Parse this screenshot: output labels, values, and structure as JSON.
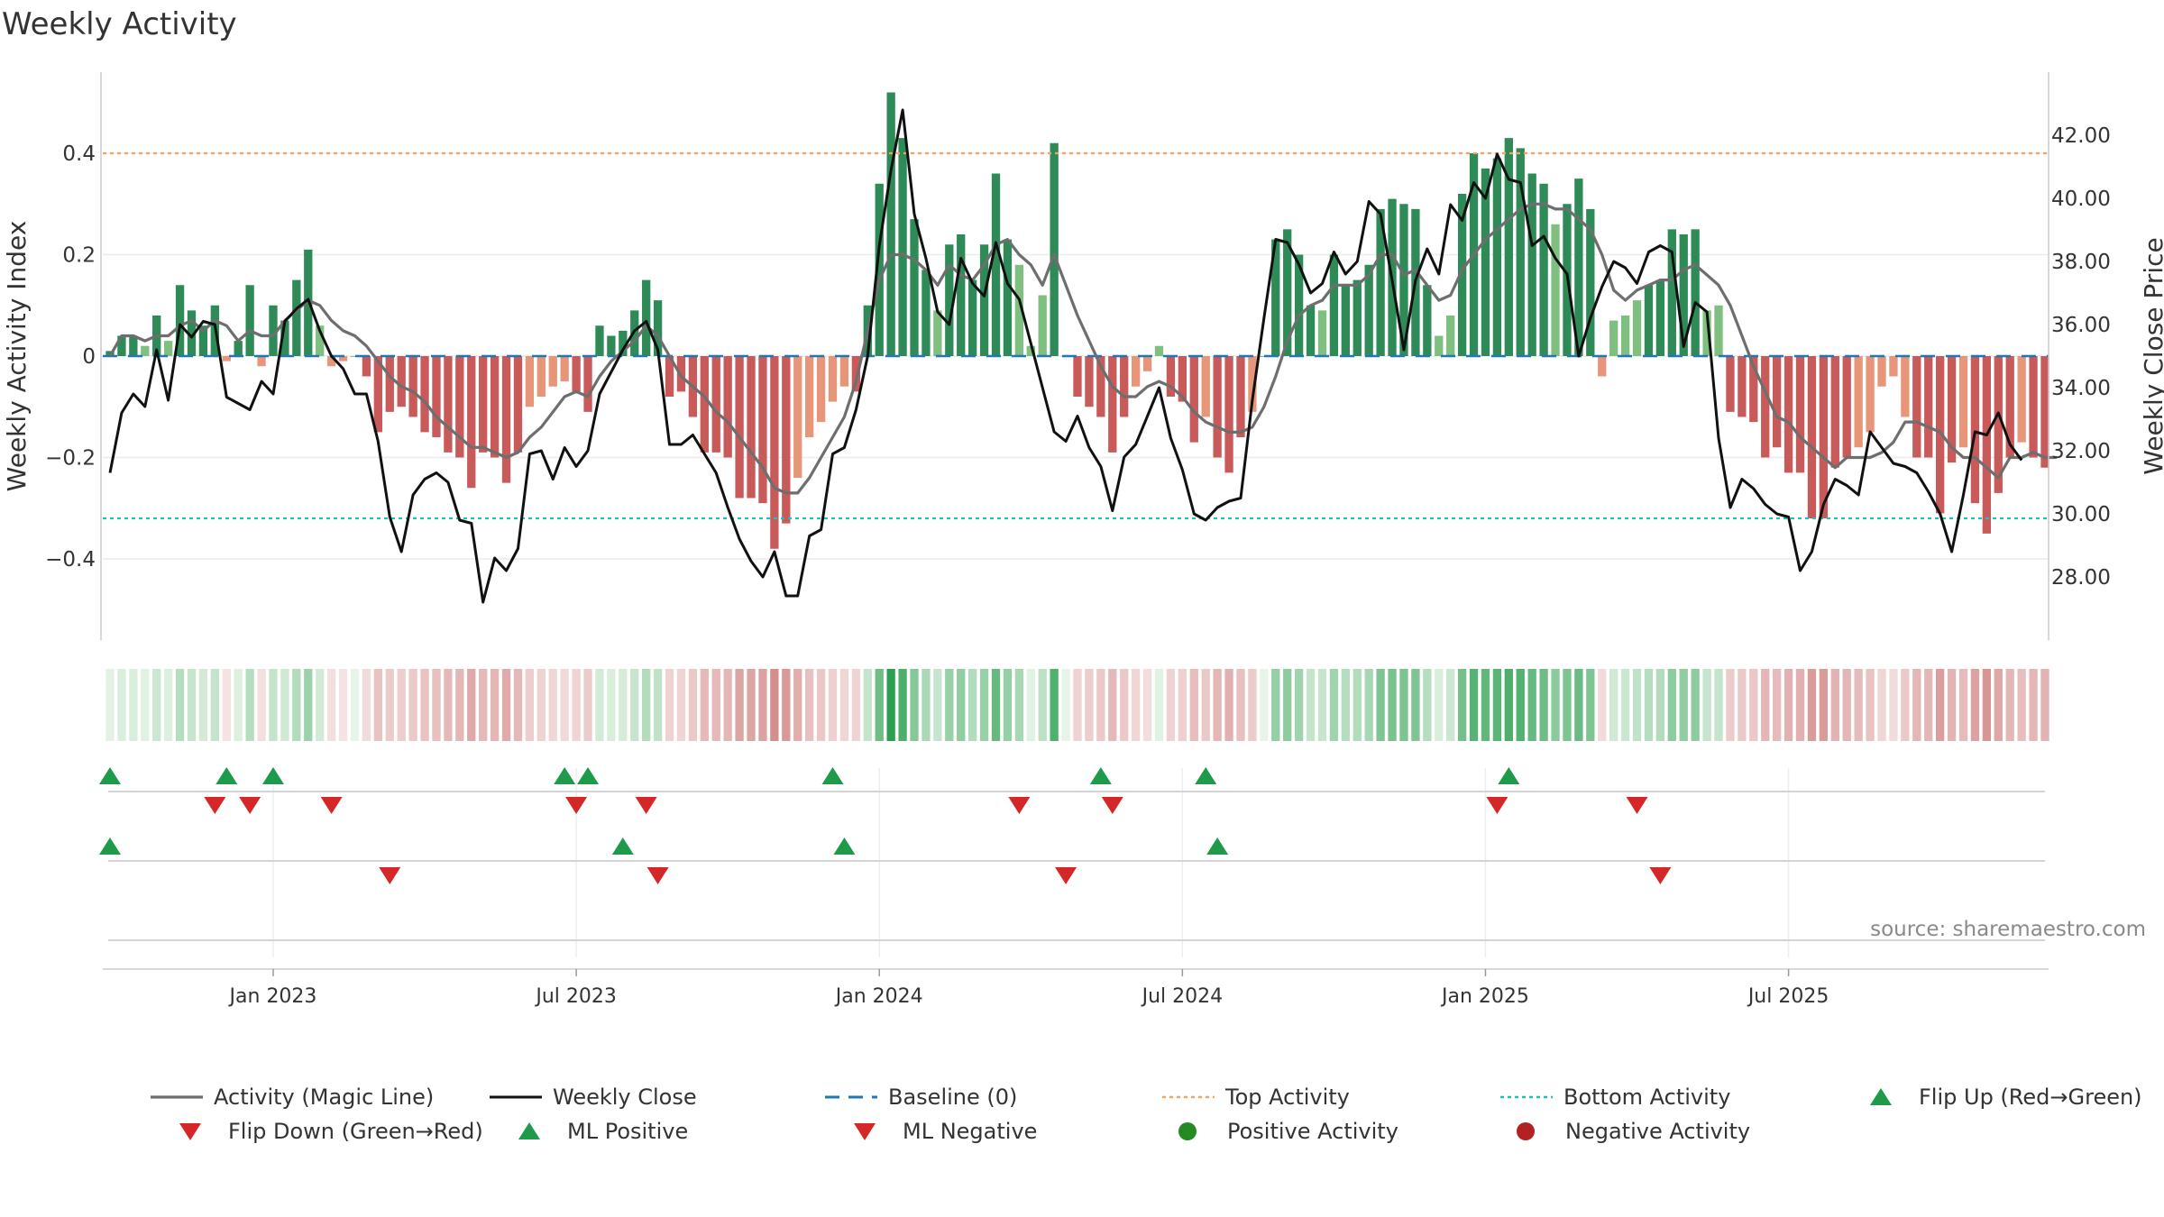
{
  "chart_data": {
    "type": "bar",
    "title": "Weekly Activity",
    "ylabel": "Weekly Activity Index",
    "y2label": "Weekly Close Price",
    "ylim": [
      -0.56,
      0.56
    ],
    "y2lim": [
      26.0,
      44.0
    ],
    "yticks": [
      0.4,
      0.2,
      0,
      -0.2,
      -0.4
    ],
    "ytick_labels": [
      "0.4",
      "0.2",
      "0",
      "−0.2",
      "−0.4"
    ],
    "y2ticks": [
      42,
      40,
      38,
      36,
      34,
      32,
      30,
      28
    ],
    "y2tick_labels": [
      "42.00",
      "40.00",
      "38.00",
      "36.00",
      "34.00",
      "32.00",
      "30.00",
      "28.00"
    ],
    "x_dates": [
      "Jan 2023",
      "Jul 2023",
      "Jan 2024",
      "Jul 2024",
      "Jan 2025",
      "Jul 2025"
    ],
    "x_date_week_index": [
      14,
      40,
      66,
      92,
      118,
      144
    ],
    "top_activity": 0.4,
    "bottom_activity": -0.32,
    "watermark": "source: sharemaestro.com",
    "activity": [
      0.01,
      0.04,
      0.04,
      0.02,
      0.08,
      0.03,
      0.14,
      0.09,
      0.06,
      0.1,
      -0.01,
      0.03,
      0.14,
      -0.02,
      0.1,
      0.07,
      0.15,
      0.21,
      0.06,
      -0.02,
      -0.01,
      0.0,
      -0.04,
      -0.15,
      -0.11,
      -0.1,
      -0.12,
      -0.15,
      -0.16,
      -0.19,
      -0.2,
      -0.26,
      -0.19,
      -0.2,
      -0.25,
      -0.19,
      -0.1,
      -0.08,
      -0.06,
      -0.05,
      -0.07,
      -0.11,
      0.06,
      0.04,
      0.05,
      0.09,
      0.15,
      0.11,
      -0.08,
      -0.07,
      -0.12,
      -0.19,
      -0.19,
      -0.2,
      -0.28,
      -0.28,
      -0.29,
      -0.38,
      -0.33,
      -0.24,
      -0.16,
      -0.13,
      -0.09,
      -0.06,
      -0.07,
      0.1,
      0.34,
      0.52,
      0.43,
      0.27,
      0.17,
      0.09,
      0.22,
      0.24,
      0.15,
      0.22,
      0.36,
      0.23,
      0.18,
      0.02,
      0.12,
      0.42,
      0.0,
      -0.08,
      -0.1,
      -0.12,
      -0.19,
      -0.12,
      -0.06,
      -0.03,
      0.02,
      -0.08,
      -0.09,
      -0.17,
      -0.12,
      -0.2,
      -0.23,
      -0.16,
      -0.11,
      0.0,
      0.23,
      0.25,
      0.2,
      0.1,
      0.09,
      0.2,
      0.14,
      0.15,
      0.18,
      0.29,
      0.31,
      0.3,
      0.29,
      0.14,
      0.04,
      0.08,
      0.32,
      0.4,
      0.37,
      0.39,
      0.43,
      0.41,
      0.36,
      0.34,
      0.26,
      0.3,
      0.35,
      0.29,
      -0.04,
      0.07,
      0.08,
      0.11,
      0.14,
      0.15,
      0.25,
      0.24,
      0.25,
      0.09,
      0.1,
      -0.11,
      -0.12,
      -0.13,
      -0.2,
      -0.18,
      -0.23,
      -0.23,
      -0.32,
      -0.32,
      -0.22,
      -0.2,
      -0.18,
      -0.15,
      -0.06,
      -0.04,
      -0.12,
      -0.2,
      -0.2,
      -0.31,
      -0.21,
      -0.18,
      -0.29,
      -0.35,
      -0.27,
      -0.2,
      -0.17,
      -0.2,
      -0.22
    ],
    "magic_line": [
      0.0,
      0.04,
      0.04,
      0.03,
      0.04,
      0.04,
      0.06,
      0.07,
      0.05,
      0.07,
      0.06,
      0.03,
      0.05,
      0.04,
      0.04,
      0.07,
      0.09,
      0.11,
      0.1,
      0.07,
      0.05,
      0.04,
      0.02,
      -0.01,
      -0.04,
      -0.06,
      -0.07,
      -0.09,
      -0.12,
      -0.14,
      -0.16,
      -0.18,
      -0.18,
      -0.19,
      -0.2,
      -0.19,
      -0.16,
      -0.14,
      -0.11,
      -0.08,
      -0.07,
      -0.08,
      -0.04,
      -0.01,
      0.01,
      0.03,
      0.06,
      0.04,
      0.0,
      -0.04,
      -0.06,
      -0.08,
      -0.11,
      -0.13,
      -0.16,
      -0.19,
      -0.22,
      -0.26,
      -0.27,
      -0.27,
      -0.24,
      -0.2,
      -0.16,
      -0.12,
      -0.05,
      0.05,
      0.15,
      0.2,
      0.2,
      0.19,
      0.17,
      0.14,
      0.18,
      0.16,
      0.15,
      0.18,
      0.22,
      0.23,
      0.2,
      0.18,
      0.14,
      0.2,
      0.14,
      0.08,
      0.03,
      -0.02,
      -0.06,
      -0.08,
      -0.08,
      -0.06,
      -0.05,
      -0.06,
      -0.08,
      -0.11,
      -0.13,
      -0.14,
      -0.15,
      -0.15,
      -0.14,
      -0.1,
      -0.04,
      0.03,
      0.08,
      0.1,
      0.11,
      0.14,
      0.14,
      0.14,
      0.16,
      0.2,
      0.2,
      0.16,
      0.17,
      0.14,
      0.11,
      0.12,
      0.17,
      0.2,
      0.23,
      0.25,
      0.27,
      0.29,
      0.3,
      0.3,
      0.29,
      0.29,
      0.27,
      0.25,
      0.2,
      0.13,
      0.11,
      0.13,
      0.14,
      0.15,
      0.15,
      0.17,
      0.18,
      0.16,
      0.14,
      0.1,
      0.04,
      -0.02,
      -0.07,
      -0.12,
      -0.13,
      -0.16,
      -0.18,
      -0.2,
      -0.22,
      -0.2,
      -0.2,
      -0.2,
      -0.19,
      -0.17,
      -0.13,
      -0.13,
      -0.14,
      -0.15,
      -0.18,
      -0.2,
      -0.2,
      -0.22,
      -0.24,
      -0.2,
      -0.2,
      -0.19,
      -0.2,
      -0.2
    ],
    "weekly_close": [
      31.3,
      33.2,
      33.8,
      33.4,
      35.2,
      33.6,
      36.0,
      35.6,
      36.1,
      36.0,
      33.7,
      33.5,
      33.3,
      34.2,
      33.8,
      36.1,
      36.5,
      36.8,
      35.8,
      35.0,
      34.6,
      33.8,
      33.8,
      32.3,
      29.9,
      28.8,
      30.6,
      31.1,
      31.3,
      31.0,
      29.8,
      29.7,
      27.2,
      28.6,
      28.2,
      28.9,
      31.9,
      32.0,
      31.1,
      32.1,
      31.5,
      32.0,
      33.8,
      34.5,
      35.2,
      35.8,
      36.1,
      35.2,
      32.2,
      32.2,
      32.5,
      31.9,
      31.3,
      30.2,
      29.2,
      28.5,
      28.0,
      28.8,
      27.4,
      27.4,
      29.3,
      29.5,
      31.9,
      32.1,
      33.3,
      35.0,
      38.5,
      40.9,
      42.8,
      39.5,
      38.1,
      36.4,
      36.0,
      38.1,
      37.3,
      36.9,
      38.6,
      37.3,
      36.8,
      35.4,
      34.0,
      32.6,
      32.3,
      33.1,
      32.1,
      31.5,
      30.1,
      31.8,
      32.2,
      33.1,
      34.0,
      32.4,
      31.4,
      30.0,
      29.8,
      30.2,
      30.4,
      30.5,
      33.6,
      36.2,
      38.7,
      38.6,
      37.9,
      37.0,
      37.3,
      38.3,
      37.6,
      38.0,
      39.9,
      39.5,
      37.4,
      35.2,
      37.4,
      38.4,
      37.6,
      39.8,
      39.3,
      40.5,
      40.0,
      41.4,
      40.6,
      40.5,
      38.5,
      38.8,
      38.1,
      37.6,
      35.0,
      36.2,
      37.2,
      38.0,
      37.8,
      37.3,
      38.3,
      38.5,
      38.3,
      35.3,
      36.7,
      36.4,
      32.4,
      30.2,
      31.1,
      30.8,
      30.3,
      30.0,
      29.9,
      28.2,
      28.8,
      30.3,
      31.1,
      30.9,
      30.6,
      32.6,
      32.1,
      31.6,
      31.5,
      31.3,
      30.7,
      30.0,
      28.8,
      30.6,
      32.6,
      32.5,
      33.2,
      32.2,
      31.7
    ],
    "flip_up": [
      0,
      10,
      14,
      39,
      41,
      62,
      85,
      94,
      120
    ],
    "flip_down": [
      9,
      12,
      19,
      40,
      46,
      78,
      86,
      119,
      131
    ],
    "ml_positive": [
      0,
      44,
      63,
      95
    ],
    "ml_negative": [
      24,
      47,
      82,
      133
    ],
    "legend": [
      {
        "key": "magic_line",
        "label": "Activity (Magic Line)"
      },
      {
        "key": "weekly_close",
        "label": "Weekly Close"
      },
      {
        "key": "baseline",
        "label": "Baseline (0)"
      },
      {
        "key": "top_activity",
        "label": "Top Activity"
      },
      {
        "key": "bottom_activity",
        "label": "Bottom Activity"
      },
      {
        "key": "flip_up",
        "label": "Flip Up (Red→Green)"
      },
      {
        "key": "flip_down",
        "label": "Flip Down (Green→Red)"
      },
      {
        "key": "ml_positive",
        "label": "ML Positive"
      },
      {
        "key": "ml_negative",
        "label": "ML Negative"
      },
      {
        "key": "positive_activity",
        "label": "Positive Activity"
      },
      {
        "key": "negative_activity",
        "label": "Negative Activity"
      }
    ]
  },
  "colors": {
    "strong_green": "#2e8b57",
    "light_green": "#7fbf7f",
    "strong_red": "#c85a5a",
    "light_red": "#e8967a",
    "magic_line": "#6e6e6e",
    "weekly_close": "#111111",
    "baseline": "#1f77b4",
    "top_line": "#f4a460",
    "bottom_line": "#20c0c0",
    "marker_green": "#1e9a4a",
    "marker_red": "#d62728",
    "positive_dot": "#228b22",
    "negative_dot": "#b22222"
  }
}
